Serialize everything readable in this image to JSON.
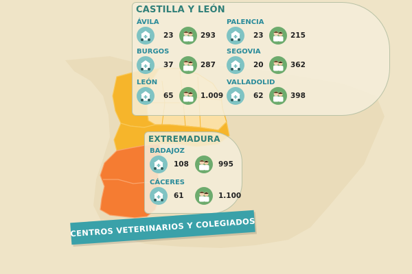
{
  "colors": {
    "background": "#efe4c7",
    "spain_land": "#e8d9b6",
    "castilla_leon_light": "#fbe0a5",
    "castilla_leon_dark": "#f6b52b",
    "extremadura": "#f57c32",
    "accent_teal": "#3aa1a9",
    "icon_clinic": "#7fc3c3",
    "icon_vets": "#6dab6d"
  },
  "icons": {
    "clinic": "veterinary-clinic-icon",
    "vets": "veterinarians-icon"
  },
  "castilla_leon": {
    "title": "CASTILLA Y LEÓN",
    "provinces": [
      {
        "name": "ÁVILA",
        "centros": "23",
        "colegiados": "293"
      },
      {
        "name": "PALENCIA",
        "centros": "23",
        "colegiados": "215"
      },
      {
        "name": "BURGOS",
        "centros": "37",
        "colegiados": "287"
      },
      {
        "name": "SEGOVIA",
        "centros": "20",
        "colegiados": "362"
      },
      {
        "name": "LEÓN",
        "centros": "65",
        "colegiados": "1.009"
      },
      {
        "name": "VALLADOLID",
        "centros": "62",
        "colegiados": "398"
      }
    ]
  },
  "extremadura": {
    "title": "EXTREMADURA",
    "provinces": [
      {
        "name": "BADAJOZ",
        "centros": "108",
        "colegiados": "995"
      },
      {
        "name": "CÁCERES",
        "centros": "61",
        "colegiados": "1.100"
      }
    ]
  },
  "banner": {
    "text": "CENTROS VETERINARIOS Y COLEGIADOS"
  }
}
